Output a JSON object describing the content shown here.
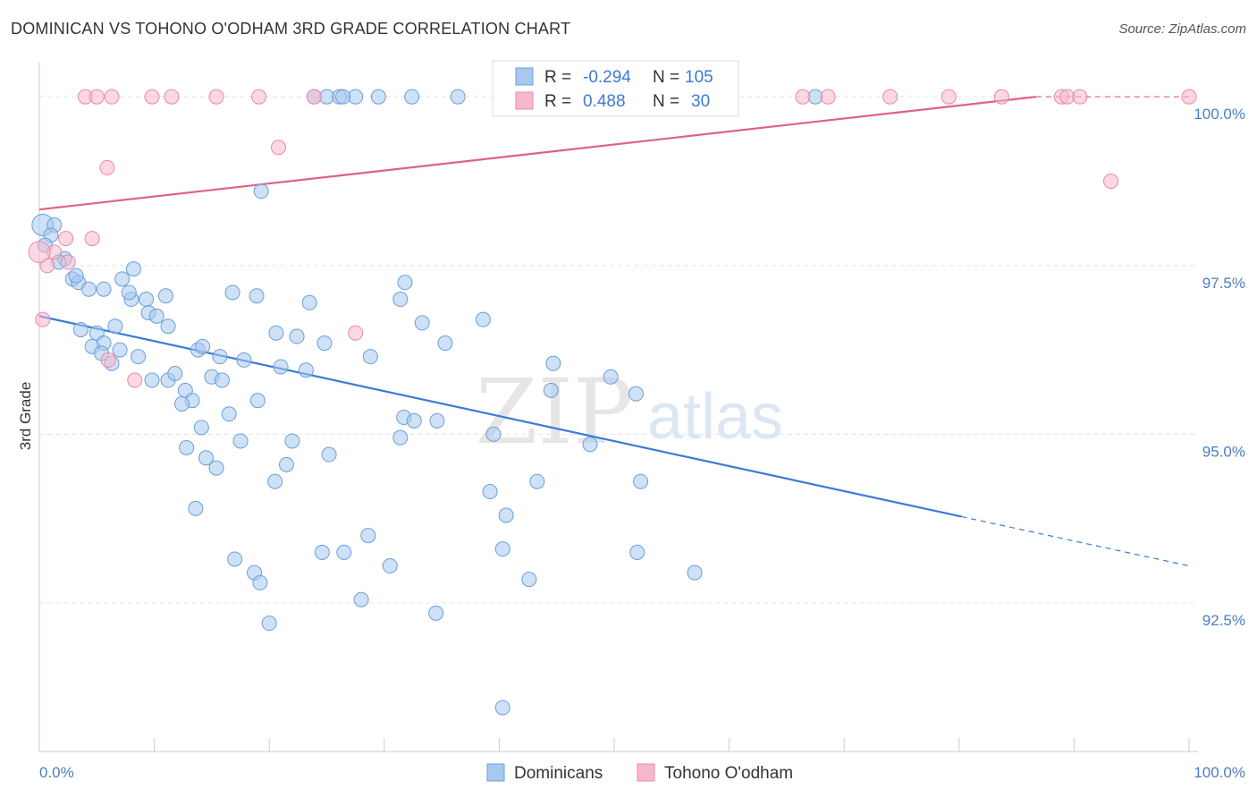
{
  "header": {
    "title": "DOMINICAN VS TOHONO O'ODHAM 3RD GRADE CORRELATION CHART",
    "source": "Source: ZipAtlas.com"
  },
  "watermark": {
    "zip": "ZIP",
    "atlas": "atlas"
  },
  "legend_top": [
    {
      "r_label": "R =",
      "r_value": "-0.294",
      "n_label": "N =",
      "n_value": "105",
      "color": "#a8c8f0",
      "stroke": "#6a9fd8"
    },
    {
      "r_label": "R =",
      "r_value": "0.488",
      "n_label": "N =",
      "n_value": "30",
      "color": "#f7b8cc",
      "stroke": "#e88aa8"
    }
  ],
  "chart_data": {
    "type": "scatter",
    "xlabel": "",
    "ylabel": "3rd Grade",
    "xlim": [
      0,
      100
    ],
    "ylim": [
      90.3,
      100.4
    ],
    "x_tick_labels": [
      "0.0%",
      "100.0%"
    ],
    "y_ticks": [
      92.5,
      95.0,
      97.5,
      100.0
    ],
    "y_tick_labels": [
      "92.5%",
      "95.0%",
      "97.5%",
      "100.0%"
    ],
    "grid": true,
    "legend_position": "bottom-center",
    "series": [
      {
        "name": "Dominicans",
        "color": "#a8c8f0",
        "stroke": "#6a9fd8",
        "line_color": "#3a7bd5",
        "trend": {
          "x0": 0,
          "y0": 96.75,
          "x1": 80.2,
          "y1": 93.78,
          "dash_to_x": 100,
          "dash_to_y": 93.05
        },
        "points": [
          [
            0.3,
            98.1
          ],
          [
            1.3,
            98.1
          ],
          [
            1.0,
            97.95
          ],
          [
            2.2,
            97.6
          ],
          [
            1.7,
            97.55
          ],
          [
            2.9,
            97.3
          ],
          [
            3.4,
            97.25
          ],
          [
            4.3,
            97.15
          ],
          [
            5.6,
            97.15
          ],
          [
            7.2,
            97.3
          ],
          [
            8.2,
            97.45
          ],
          [
            8.0,
            97.0
          ],
          [
            7.8,
            97.1
          ],
          [
            9.3,
            97.0
          ],
          [
            9.5,
            96.8
          ],
          [
            10.2,
            96.75
          ],
          [
            11.0,
            97.05
          ],
          [
            11.2,
            96.6
          ],
          [
            3.6,
            96.55
          ],
          [
            5.0,
            96.5
          ],
          [
            5.6,
            96.35
          ],
          [
            4.6,
            96.3
          ],
          [
            5.4,
            96.2
          ],
          [
            6.3,
            96.05
          ],
          [
            7.0,
            96.25
          ],
          [
            8.6,
            96.15
          ],
          [
            9.8,
            95.8
          ],
          [
            11.2,
            95.8
          ],
          [
            11.8,
            95.9
          ],
          [
            12.7,
            95.65
          ],
          [
            13.3,
            95.5
          ],
          [
            12.4,
            95.45
          ],
          [
            13.8,
            96.25
          ],
          [
            14.2,
            96.3
          ],
          [
            15.0,
            95.85
          ],
          [
            15.9,
            95.8
          ],
          [
            15.7,
            96.15
          ],
          [
            17.8,
            96.1
          ],
          [
            16.5,
            95.3
          ],
          [
            14.1,
            95.1
          ],
          [
            12.8,
            94.8
          ],
          [
            14.5,
            94.65
          ],
          [
            15.4,
            94.5
          ],
          [
            17.5,
            94.9
          ],
          [
            19.0,
            95.5
          ],
          [
            20.6,
            96.5
          ],
          [
            22.4,
            96.45
          ],
          [
            21.0,
            96.0
          ],
          [
            23.2,
            95.95
          ],
          [
            24.8,
            96.35
          ],
          [
            23.5,
            96.95
          ],
          [
            22.0,
            94.9
          ],
          [
            21.5,
            94.55
          ],
          [
            20.5,
            94.3
          ],
          [
            25.2,
            94.7
          ],
          [
            18.9,
            97.05
          ],
          [
            16.8,
            97.1
          ],
          [
            19.3,
            98.6
          ],
          [
            13.6,
            93.9
          ],
          [
            17.0,
            93.15
          ],
          [
            18.7,
            92.95
          ],
          [
            19.2,
            92.8
          ],
          [
            20.0,
            92.2
          ],
          [
            24.6,
            93.25
          ],
          [
            26.5,
            93.25
          ],
          [
            28.6,
            93.5
          ],
          [
            30.5,
            93.05
          ],
          [
            28.0,
            92.55
          ],
          [
            31.7,
            95.25
          ],
          [
            31.4,
            94.95
          ],
          [
            32.6,
            95.2
          ],
          [
            34.6,
            95.2
          ],
          [
            35.3,
            96.35
          ],
          [
            33.3,
            96.65
          ],
          [
            28.8,
            96.15
          ],
          [
            31.8,
            97.25
          ],
          [
            31.4,
            97.0
          ],
          [
            38.6,
            96.7
          ],
          [
            39.5,
            95.0
          ],
          [
            39.2,
            94.15
          ],
          [
            40.6,
            93.8
          ],
          [
            40.3,
            93.3
          ],
          [
            42.6,
            92.85
          ],
          [
            34.5,
            92.35
          ],
          [
            40.3,
            90.95
          ],
          [
            43.3,
            94.3
          ],
          [
            44.7,
            96.05
          ],
          [
            44.5,
            95.65
          ],
          [
            47.9,
            94.85
          ],
          [
            49.7,
            95.85
          ],
          [
            51.9,
            95.6
          ],
          [
            52.3,
            94.3
          ],
          [
            52.0,
            93.25
          ],
          [
            57.0,
            92.95
          ],
          [
            25.0,
            100.0
          ],
          [
            27.5,
            100.0
          ],
          [
            29.5,
            100.0
          ],
          [
            32.4,
            100.0
          ],
          [
            36.4,
            100.0
          ],
          [
            67.5,
            100.0
          ],
          [
            0.5,
            97.8
          ],
          [
            26.1,
            100.0
          ],
          [
            26.4,
            100.0
          ],
          [
            23.9,
            100.0
          ],
          [
            3.2,
            97.35
          ],
          [
            6.6,
            96.6
          ]
        ]
      },
      {
        "name": "Tohono O'odham",
        "color": "#f7b8cc",
        "stroke": "#e88aa8",
        "line_color": "#e0608a",
        "trend": {
          "x0": 0,
          "y0": 98.33,
          "x1": 86.7,
          "y1": 100.0,
          "dash_to_x": 100,
          "dash_to_y": 100.0
        },
        "points": [
          [
            0.3,
            96.7
          ],
          [
            0.7,
            97.5
          ],
          [
            1.3,
            97.7
          ],
          [
            2.3,
            97.9
          ],
          [
            4.6,
            97.9
          ],
          [
            2.5,
            97.55
          ],
          [
            6.0,
            96.1
          ],
          [
            8.3,
            95.8
          ],
          [
            5.9,
            98.95
          ],
          [
            4.0,
            100.0
          ],
          [
            5.0,
            100.0
          ],
          [
            6.3,
            100.0
          ],
          [
            9.8,
            100.0
          ],
          [
            11.5,
            100.0
          ],
          [
            15.4,
            100.0
          ],
          [
            19.1,
            100.0
          ],
          [
            20.8,
            99.25
          ],
          [
            23.9,
            100.0
          ],
          [
            27.5,
            96.5
          ],
          [
            66.4,
            100.0
          ],
          [
            68.6,
            100.0
          ],
          [
            74.0,
            100.0
          ],
          [
            79.1,
            100.0
          ],
          [
            83.7,
            100.0
          ],
          [
            88.9,
            100.0
          ],
          [
            89.4,
            100.0
          ],
          [
            90.5,
            100.0
          ],
          [
            93.2,
            98.75
          ],
          [
            100.0,
            100.0
          ],
          [
            0.0,
            97.7
          ]
        ]
      }
    ]
  }
}
